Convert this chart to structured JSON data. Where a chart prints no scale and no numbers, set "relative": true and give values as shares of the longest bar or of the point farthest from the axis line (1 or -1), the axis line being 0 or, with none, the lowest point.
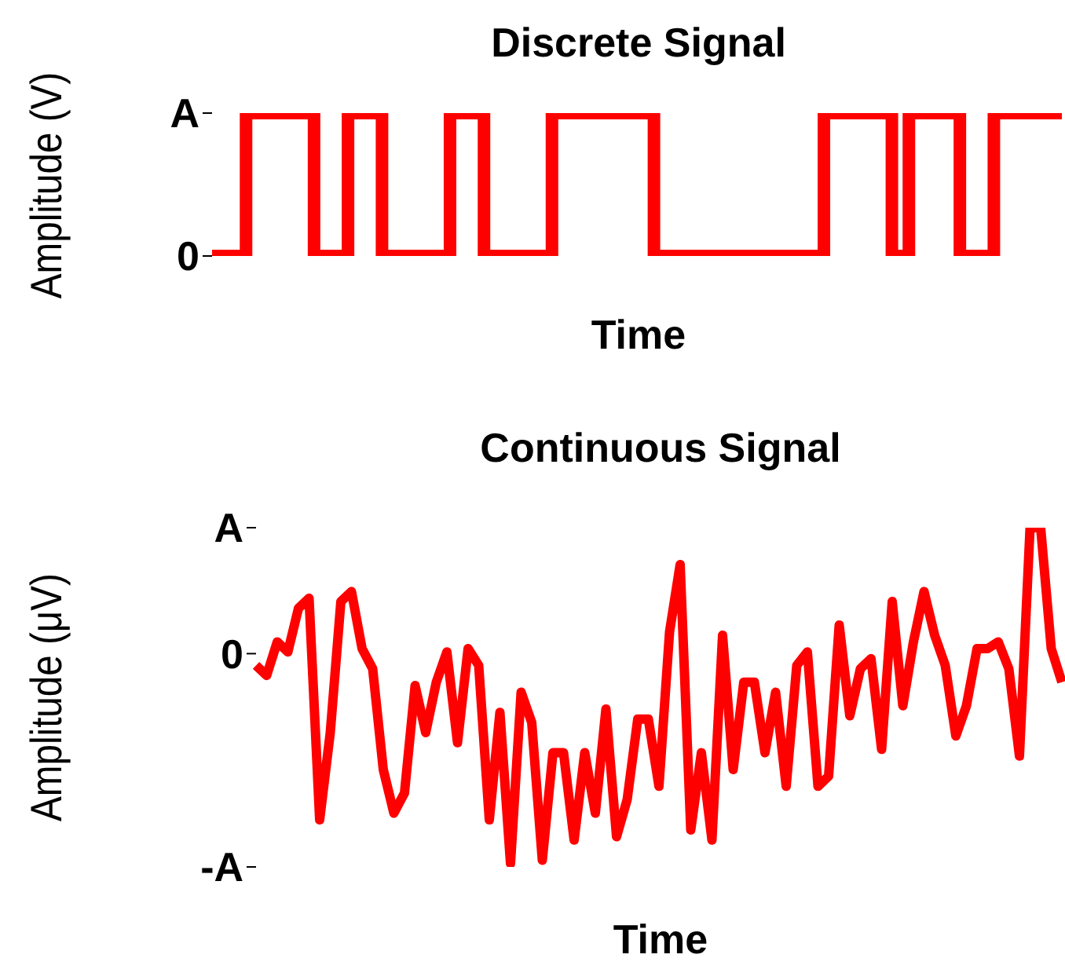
{
  "chart_data": [
    {
      "type": "step",
      "title": "Discrete Signal",
      "xlabel": "Time",
      "ylabel": "Amplitude (V)",
      "color": "#ff0000",
      "relative": true,
      "categories": [
        null,
        null,
        null,
        null,
        null,
        null,
        null,
        null,
        null,
        null,
        null,
        null,
        null,
        null,
        null,
        null,
        null,
        null,
        null,
        null,
        null,
        null,
        null,
        null,
        null,
        null,
        null,
        null,
        null,
        null,
        null,
        null,
        null,
        null,
        null,
        null,
        null,
        null,
        null,
        null,
        null,
        null,
        null,
        null,
        null,
        null,
        null,
        null,
        null,
        null,
        null
      ],
      "values": [
        0,
        0,
        1,
        1,
        1,
        1,
        0,
        0,
        1,
        1,
        0,
        0,
        0,
        0,
        1,
        1,
        0,
        0,
        0,
        0,
        1,
        1,
        1,
        1,
        1,
        1,
        0,
        0,
        0,
        0,
        0,
        0,
        0,
        0,
        0,
        0,
        1,
        1,
        1,
        1,
        0,
        1,
        1,
        1,
        0,
        0,
        1,
        1,
        1,
        1,
        1
      ],
      "annotations": [
        "A",
        "0"
      ]
    },
    {
      "type": "line",
      "title": "Continuous Signal",
      "xlabel": "Time",
      "ylabel": "Amplitude (μV)",
      "color": "#ff0000",
      "relative": true,
      "categories": [
        null,
        null,
        null,
        null,
        null,
        null,
        null,
        null,
        null,
        null,
        null,
        null,
        null,
        null,
        null,
        null,
        null,
        null,
        null,
        null,
        null,
        null,
        null,
        null,
        null,
        null,
        null,
        null,
        null,
        null,
        null,
        null,
        null,
        null,
        null,
        null,
        null,
        null,
        null,
        null,
        null,
        null,
        null,
        null,
        null,
        null,
        null,
        null,
        null,
        null,
        null,
        null,
        null,
        null,
        null,
        null,
        null,
        null,
        null,
        null,
        null,
        null,
        null,
        null,
        null,
        null,
        null,
        null,
        null,
        null,
        null,
        null,
        null,
        null,
        null,
        null,
        null
      ],
      "values": [
        0.59,
        0.56,
        0.66,
        0.63,
        0.76,
        0.79,
        0.13,
        0.39,
        0.78,
        0.81,
        0.64,
        0.58,
        0.28,
        0.15,
        0.21,
        0.53,
        0.39,
        0.54,
        0.63,
        0.36,
        0.64,
        0.59,
        0.13,
        0.45,
        0,
        0.51,
        0.42,
        0.01,
        0.33,
        0.33,
        0.07,
        0.33,
        0.15,
        0.46,
        0.08,
        0.19,
        0.43,
        0.43,
        0.23,
        0.69,
        0.89,
        0.1,
        0.33,
        0.07,
        0.68,
        0.28,
        0.54,
        0.54,
        0.33,
        0.51,
        0.23,
        0.59,
        0.63,
        0.23,
        0.26,
        0.71,
        0.44,
        0.58,
        0.61,
        0.34,
        0.78,
        0.47,
        0.66,
        0.81,
        0.68,
        0.59,
        0.38,
        0.47,
        0.64,
        0.64,
        0.66,
        0.58,
        0.32,
        1,
        1,
        0.64,
        0.54
      ],
      "annotations": [
        "A",
        "0",
        "-A"
      ]
    }
  ]
}
